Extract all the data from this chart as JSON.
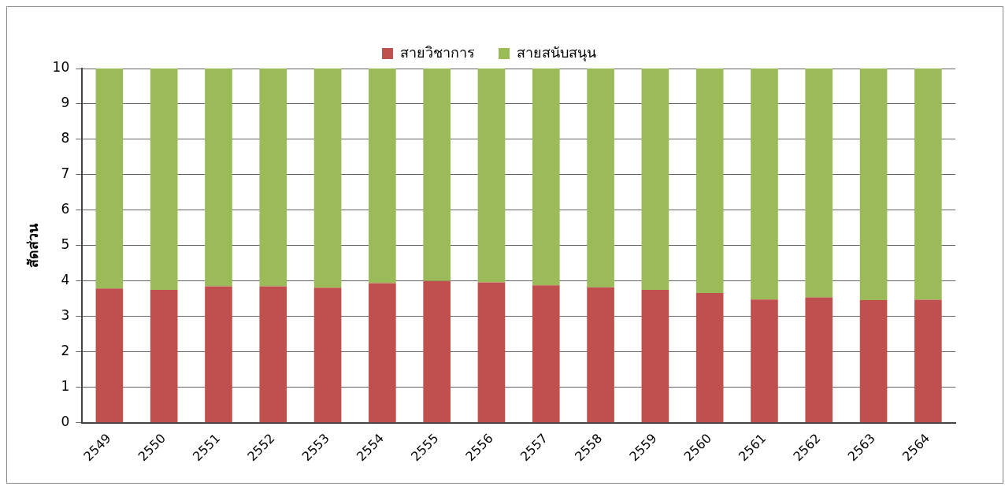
{
  "chart_data": {
    "type": "bar",
    "stacked": true,
    "ylabel": "สัดส่วน",
    "legend": "top",
    "grid": "y",
    "categories": [
      "2549",
      "2550",
      "2551",
      "2552",
      "2553",
      "2554",
      "2555",
      "2556",
      "2557",
      "2558",
      "2559",
      "2560",
      "2561",
      "2562",
      "2563",
      "2564"
    ],
    "series": [
      {
        "name": "สายวิชาการ",
        "color": "#c0504d",
        "values": [
          3.79,
          3.75,
          3.85,
          3.85,
          3.81,
          3.94,
          4.0,
          3.96,
          3.88,
          3.82,
          3.75,
          3.66,
          3.48,
          3.54,
          3.46,
          3.47
        ]
      },
      {
        "name": "สายสนับสนุน",
        "color": "#9bbb59",
        "values": [
          6.21,
          6.25,
          6.15,
          6.15,
          6.19,
          6.06,
          6.0,
          6.04,
          6.12,
          6.18,
          6.25,
          6.34,
          6.52,
          6.46,
          6.54,
          6.53
        ]
      }
    ],
    "ylim": [
      0,
      10
    ],
    "yticks": [
      0,
      1,
      2,
      3,
      4,
      5,
      6,
      7,
      8,
      9,
      10
    ]
  }
}
